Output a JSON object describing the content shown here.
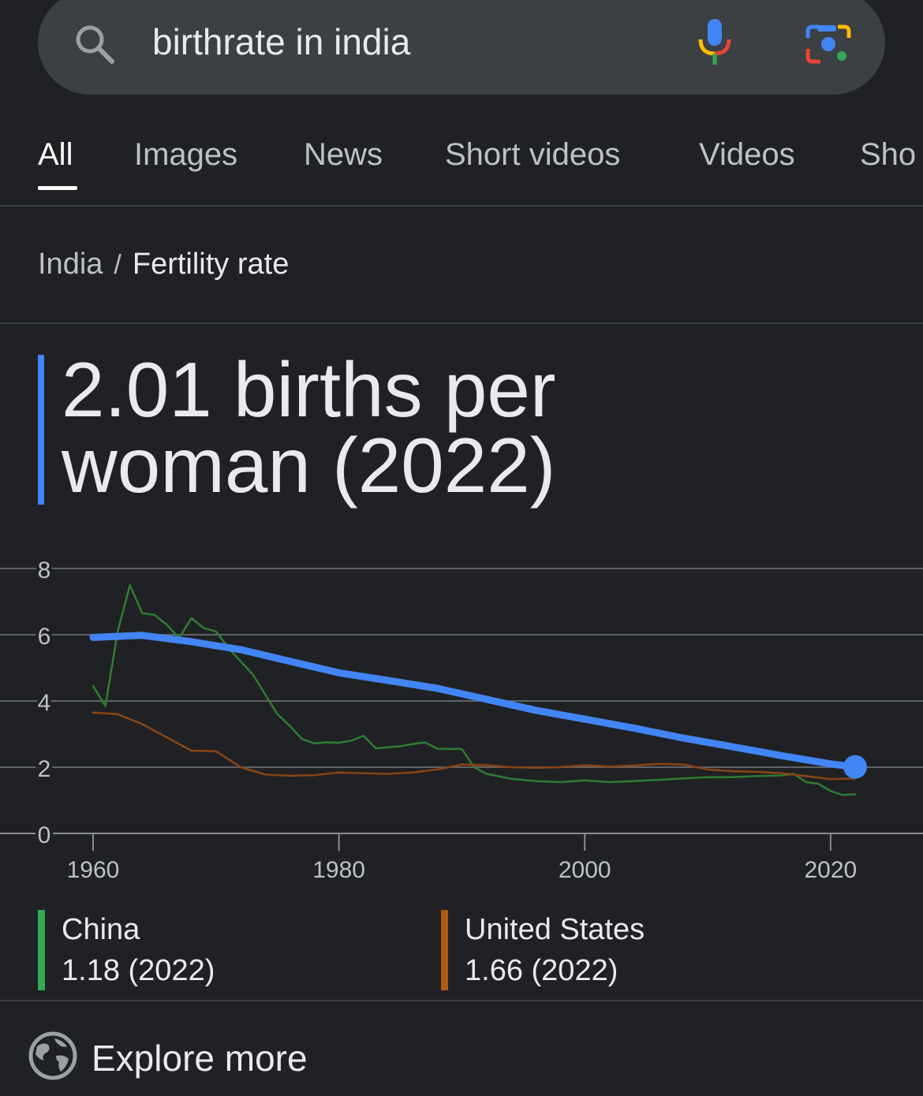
{
  "search": {
    "query": "birthrate in india"
  },
  "tabs": [
    {
      "label": "All",
      "active": true
    },
    {
      "label": "Images"
    },
    {
      "label": "News"
    },
    {
      "label": "Short videos"
    },
    {
      "label": "Videos"
    },
    {
      "label": "Sho"
    }
  ],
  "breadcrumb": {
    "country": "India",
    "separator": "/",
    "topic": "Fertility rate"
  },
  "answer": {
    "line1": "2.01 births per",
    "line2": "woman (2022)"
  },
  "colors": {
    "india": "#4285f4",
    "china": "#2e7d32",
    "us": "#8b4513",
    "china_legend": "#34a853",
    "us_legend": "#b25a12"
  },
  "chart_data": {
    "type": "line",
    "x_ticks": [
      "1960",
      "1980",
      "2000",
      "2020"
    ],
    "y_ticks": [
      "0",
      "2",
      "4",
      "6",
      "8"
    ],
    "xlim": [
      1960,
      2022
    ],
    "ylim": [
      0,
      8
    ],
    "series": [
      {
        "name": "India",
        "x": [
          1960,
          1964,
          1968,
          1972,
          1976,
          1980,
          1984,
          1988,
          1992,
          1996,
          2000,
          2004,
          2008,
          2012,
          2016,
          2020,
          2022
        ],
        "values": [
          5.92,
          5.98,
          5.79,
          5.55,
          5.2,
          4.85,
          4.62,
          4.38,
          4.05,
          3.72,
          3.45,
          3.18,
          2.88,
          2.62,
          2.35,
          2.1,
          2.01
        ]
      },
      {
        "name": "China",
        "x": [
          1960,
          1961,
          1962,
          1963,
          1964,
          1965,
          1966,
          1967,
          1968,
          1969,
          1970,
          1971,
          1972,
          1973,
          1974,
          1975,
          1976,
          1977,
          1978,
          1979,
          1980,
          1981,
          1982,
          1983,
          1984,
          1985,
          1986,
          1987,
          1988,
          1989,
          1990,
          1991,
          1992,
          1994,
          1996,
          1998,
          2000,
          2002,
          2004,
          2006,
          2008,
          2010,
          2012,
          2014,
          2016,
          2017,
          2018,
          2019,
          2020,
          2021,
          2022
        ],
        "values": [
          4.45,
          3.85,
          6.1,
          7.5,
          6.65,
          6.6,
          6.3,
          5.9,
          6.5,
          6.2,
          6.1,
          5.6,
          5.2,
          4.8,
          4.2,
          3.6,
          3.25,
          2.85,
          2.72,
          2.75,
          2.74,
          2.8,
          2.95,
          2.57,
          2.6,
          2.63,
          2.7,
          2.75,
          2.56,
          2.55,
          2.55,
          2.0,
          1.8,
          1.65,
          1.58,
          1.55,
          1.6,
          1.55,
          1.58,
          1.62,
          1.66,
          1.7,
          1.7,
          1.73,
          1.75,
          1.8,
          1.55,
          1.5,
          1.28,
          1.16,
          1.18
        ]
      },
      {
        "name": "United States",
        "x": [
          1960,
          1962,
          1964,
          1966,
          1968,
          1970,
          1972,
          1974,
          1976,
          1978,
          1980,
          1982,
          1984,
          1986,
          1988,
          1990,
          1992,
          1994,
          1996,
          1998,
          2000,
          2002,
          2004,
          2006,
          2008,
          2010,
          2012,
          2014,
          2016,
          2018,
          2020,
          2022
        ],
        "values": [
          3.65,
          3.6,
          3.3,
          2.9,
          2.5,
          2.48,
          2.0,
          1.78,
          1.74,
          1.76,
          1.84,
          1.82,
          1.8,
          1.84,
          1.93,
          2.08,
          2.06,
          2.0,
          1.98,
          2.0,
          2.06,
          2.02,
          2.05,
          2.1,
          2.08,
          1.93,
          1.88,
          1.86,
          1.82,
          1.73,
          1.64,
          1.66
        ]
      }
    ]
  },
  "legend": [
    {
      "name": "China",
      "value": "1.18 (2022)"
    },
    {
      "name": "United States",
      "value": "1.66 (2022)"
    }
  ],
  "explore": {
    "label": "Explore more"
  }
}
